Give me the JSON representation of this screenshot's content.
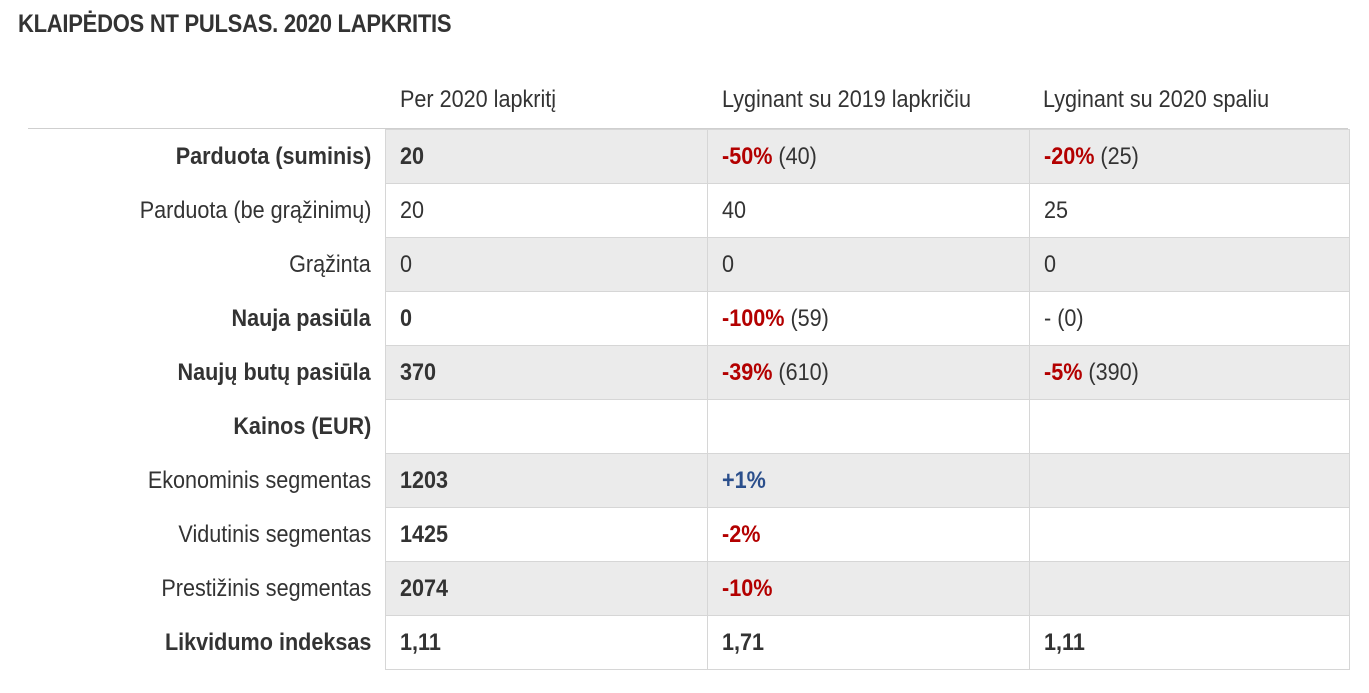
{
  "title": "KLAIPĖDOS NT PULSAS. 2020 LAPKRITIS",
  "columns": [
    "Per 2020 lapkritį",
    "Lyginant su 2019 lapkričiu",
    "Lyginant su 2020 spaliu"
  ],
  "colors": {
    "negative": "#b30000",
    "positive": "#2b4f8c",
    "shaded_row": "#ebebeb"
  },
  "rows": [
    {
      "label": "Parduota (suminis)",
      "label_bold": true,
      "shaded": true,
      "cells": [
        {
          "main": "20",
          "main_style": "bold",
          "extra": ""
        },
        {
          "main": "-50%",
          "main_style": "neg",
          "extra": " (40)"
        },
        {
          "main": "-20%",
          "main_style": "neg",
          "extra": " (25)"
        }
      ]
    },
    {
      "label": "Parduota (be grąžinimų)",
      "label_bold": false,
      "shaded": false,
      "cells": [
        {
          "main": "20",
          "main_style": "",
          "extra": ""
        },
        {
          "main": "40",
          "main_style": "",
          "extra": ""
        },
        {
          "main": "25",
          "main_style": "",
          "extra": ""
        }
      ]
    },
    {
      "label": "Grąžinta",
      "label_bold": false,
      "shaded": true,
      "cells": [
        {
          "main": "0",
          "main_style": "",
          "extra": ""
        },
        {
          "main": "0",
          "main_style": "",
          "extra": ""
        },
        {
          "main": "0",
          "main_style": "",
          "extra": ""
        }
      ]
    },
    {
      "label": "Nauja pasiūla",
      "label_bold": true,
      "shaded": false,
      "cells": [
        {
          "main": "0",
          "main_style": "bold",
          "extra": ""
        },
        {
          "main": "-100%",
          "main_style": "neg",
          "extra": " (59)"
        },
        {
          "main": "- (0)",
          "main_style": "",
          "extra": ""
        }
      ]
    },
    {
      "label": "Naujų butų pasiūla",
      "label_bold": true,
      "shaded": true,
      "cells": [
        {
          "main": "370",
          "main_style": "bold",
          "extra": ""
        },
        {
          "main": "-39%",
          "main_style": "neg",
          "extra": " (610)"
        },
        {
          "main": "-5%",
          "main_style": "neg",
          "extra": " (390)"
        }
      ]
    },
    {
      "label": "Kainos (EUR)",
      "label_bold": true,
      "shaded": false,
      "cells": [
        {
          "main": "",
          "main_style": "",
          "extra": ""
        },
        {
          "main": "",
          "main_style": "",
          "extra": ""
        },
        {
          "main": "",
          "main_style": "",
          "extra": ""
        }
      ]
    },
    {
      "label": "Ekonominis segmentas",
      "label_bold": false,
      "shaded": true,
      "cells": [
        {
          "main": "1203",
          "main_style": "bold",
          "extra": ""
        },
        {
          "main": "+1%",
          "main_style": "pos",
          "extra": ""
        },
        {
          "main": "",
          "main_style": "",
          "extra": ""
        }
      ]
    },
    {
      "label": "Vidutinis segmentas",
      "label_bold": false,
      "shaded": false,
      "cells": [
        {
          "main": "1425",
          "main_style": "bold",
          "extra": ""
        },
        {
          "main": "-2%",
          "main_style": "neg",
          "extra": ""
        },
        {
          "main": "",
          "main_style": "",
          "extra": ""
        }
      ]
    },
    {
      "label": "Prestižinis segmentas",
      "label_bold": false,
      "shaded": true,
      "cells": [
        {
          "main": "2074",
          "main_style": "bold",
          "extra": ""
        },
        {
          "main": "-10%",
          "main_style": "neg",
          "extra": ""
        },
        {
          "main": "",
          "main_style": "",
          "extra": ""
        }
      ]
    },
    {
      "label": "Likvidumo indeksas",
      "label_bold": true,
      "shaded": false,
      "cells": [
        {
          "main": "1,11",
          "main_style": "bold",
          "extra": ""
        },
        {
          "main": "1,71",
          "main_style": "bold",
          "extra": ""
        },
        {
          "main": "1,11",
          "main_style": "bold",
          "extra": ""
        }
      ]
    }
  ]
}
